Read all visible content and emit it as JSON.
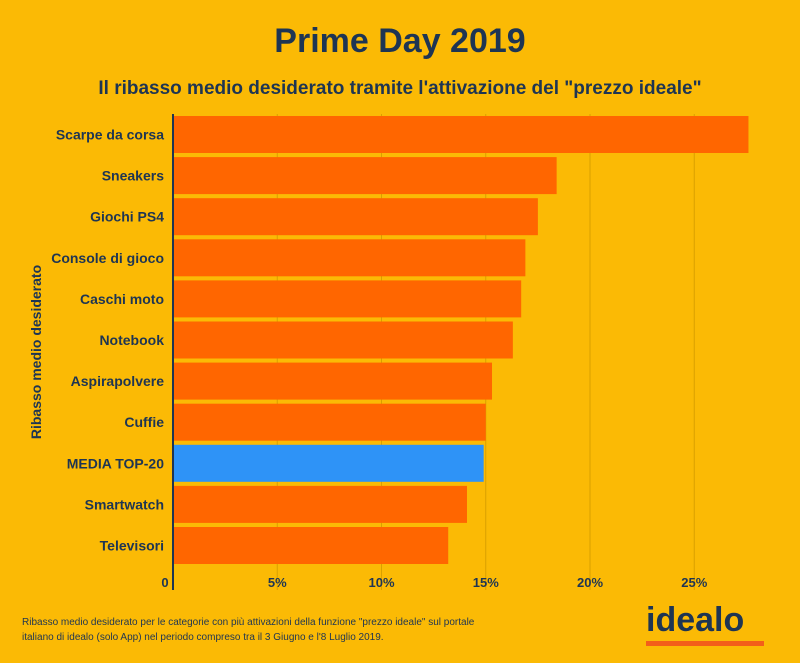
{
  "chart_data": {
    "type": "bar",
    "orientation": "horizontal",
    "title": "Prime Day 2019",
    "subtitle": "Il ribasso medio desiderato tramite l'attivazione del \"prezzo ideale\"",
    "ylabel": "Ribasso medio desiderato",
    "xlabel": "",
    "categories": [
      "Scarpe da corsa",
      "Sneakers",
      "Giochi PS4",
      "Console di gioco",
      "Caschi moto",
      "Notebook",
      "Aspirapolvere",
      "Cuffie",
      "MEDIA TOP-20",
      "Smartwatch",
      "Televisori"
    ],
    "values": [
      27.6,
      18.4,
      17.5,
      16.9,
      16.7,
      16.3,
      15.3,
      15.0,
      14.9,
      14.1,
      13.2
    ],
    "highlight": "MEDIA TOP-20",
    "xlim": [
      0,
      30
    ],
    "xticks": [
      "0",
      "5%",
      "10%",
      "15%",
      "20%",
      "25%"
    ],
    "xtick_values": [
      0,
      5,
      10,
      15,
      20,
      25
    ],
    "grid": true,
    "colors": {
      "bar": "#FF6600",
      "highlight": "#2E93F7",
      "background": "#FBBA05",
      "text": "#1E3553",
      "grid": "#D9A000"
    }
  },
  "footnote": "Ribasso medio desiderato per le categorie con più attivazioni della funzione \"prezzo ideale\" sul portale italiano di idealo (solo App) nel periodo compreso tra il 3 Giugno e l'8 Luglio 2019.",
  "logo": "idealo"
}
